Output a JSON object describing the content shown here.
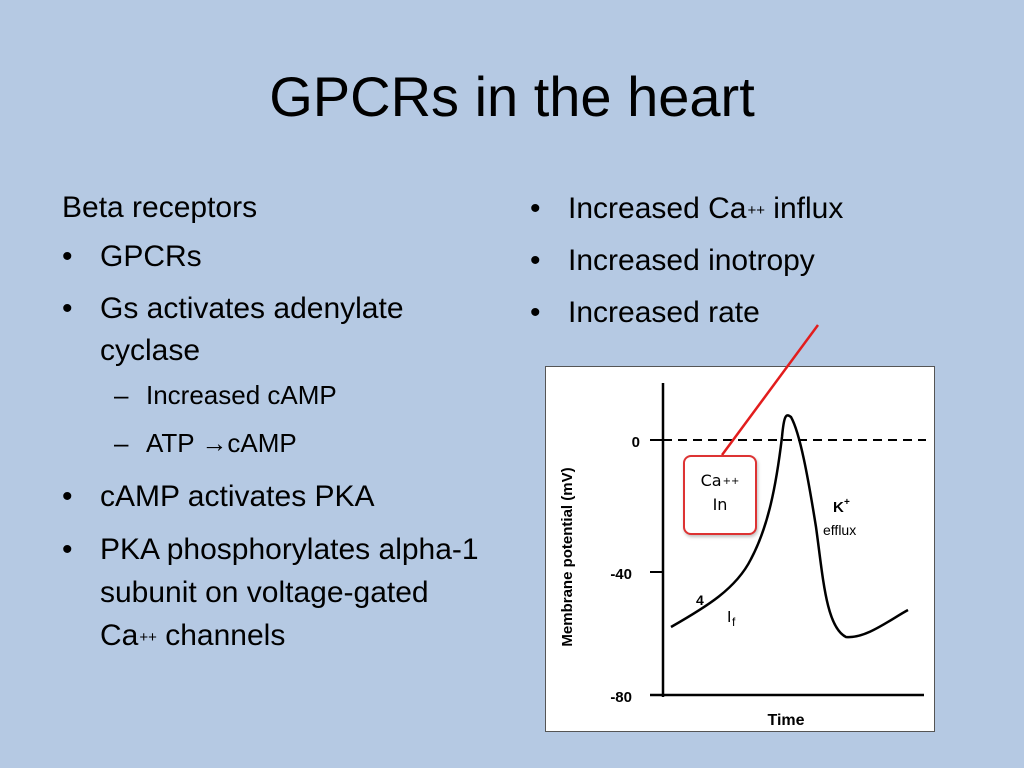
{
  "slide": {
    "title": "GPCRs in the heart"
  },
  "left": {
    "lead": "Beta receptors",
    "bullet_char": "•",
    "sub_char": "–",
    "items": [
      {
        "text": "GPCRs"
      },
      {
        "text": "Gs activates adenylate cyclase",
        "subitems": [
          "Increased cAMP",
          "ATP →cAMP"
        ]
      },
      {
        "text": "cAMP activates PKA"
      },
      {
        "text_before": "PKA phosphorylates alpha-1 subunit on voltage-gated Ca",
        "sup": "++",
        "text_after": " channels"
      }
    ]
  },
  "right": {
    "items": [
      {
        "text_before": "Increased Ca",
        "sup": "++",
        "text_after": " influx"
      },
      {
        "text": "Increased inotropy"
      },
      {
        "text": "Increased rate"
      }
    ]
  },
  "figure": {
    "ylabel": "Membrane potential (mV)",
    "xlabel": "Time",
    "ticks": [
      "0",
      "-40",
      "-80"
    ],
    "phase_label": "4",
    "if_label_main": "I",
    "if_label_sub": "f",
    "k_label": "K",
    "k_sup": "+",
    "efflux_label": "efflux",
    "callout": {
      "line1": "Ca",
      "sup": "++",
      "line2": "In"
    },
    "colors": {
      "pointer": "#e21d1d",
      "callout_border": "#d33"
    }
  }
}
